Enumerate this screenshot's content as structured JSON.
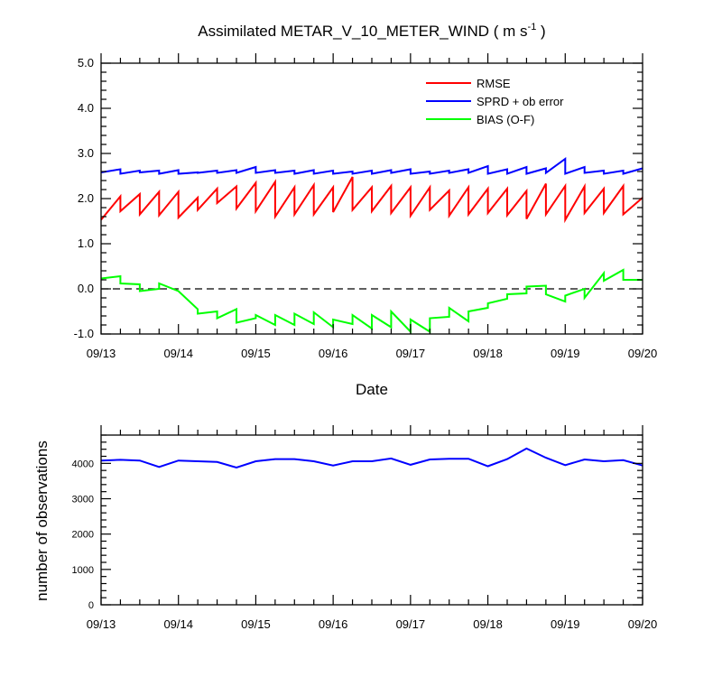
{
  "figure": {
    "title_main": "Assimilated METAR_V_10_METER_WIND ( m s",
    "title_sup": "-1",
    "title_end": " )"
  },
  "colors": {
    "rmse": "#ff0000",
    "sprd": "#0000ff",
    "bias": "#00ff00",
    "zero_line": "#000000"
  },
  "chart_data": [
    {
      "type": "line",
      "xlabel": "Date",
      "ylabel": "",
      "ylim": [
        -1.0,
        5.0
      ],
      "yticks": [
        "-1.0",
        "0.0",
        "1.0",
        "2.0",
        "3.0",
        "4.0",
        "5.0"
      ],
      "xlim": [
        "09/13",
        "09/20"
      ],
      "xticks": [
        "09/13",
        "09/14",
        "09/15",
        "09/16",
        "09/17",
        "09/18",
        "09/19",
        "09/20"
      ],
      "legend_position": "top-right",
      "reference_line": 0.0,
      "x": [
        "09/13 00",
        "09/13 06",
        "09/13 06",
        "09/13 12",
        "09/13 12",
        "09/13 18",
        "09/13 18",
        "09/14 00",
        "09/14 00",
        "09/14 06",
        "09/14 06",
        "09/14 12",
        "09/14 12",
        "09/14 18",
        "09/14 18",
        "09/15 00",
        "09/15 00",
        "09/15 06",
        "09/15 06",
        "09/15 12",
        "09/15 12",
        "09/15 18",
        "09/15 18",
        "09/16 00",
        "09/16 00",
        "09/16 06",
        "09/16 06",
        "09/16 12",
        "09/16 12",
        "09/16 18",
        "09/16 18",
        "09/17 00",
        "09/17 00",
        "09/17 06",
        "09/17 06",
        "09/17 12",
        "09/17 12",
        "09/17 18",
        "09/17 18",
        "09/18 00",
        "09/18 00",
        "09/18 06",
        "09/18 06",
        "09/18 12",
        "09/18 12",
        "09/18 18",
        "09/18 18",
        "09/19 00",
        "09/19 00",
        "09/19 06",
        "09/19 06",
        "09/19 12",
        "09/19 12",
        "09/19 18",
        "09/19 18",
        "09/20 00"
      ],
      "series": [
        {
          "name": "RMSE",
          "color": "#ff0000",
          "values": [
            1.53,
            2.05,
            1.72,
            2.1,
            1.65,
            2.15,
            1.63,
            2.15,
            1.58,
            2.02,
            1.75,
            2.22,
            1.9,
            2.27,
            1.78,
            2.35,
            1.72,
            2.37,
            1.6,
            2.25,
            1.65,
            2.3,
            1.65,
            2.25,
            1.7,
            2.48,
            1.75,
            2.25,
            1.72,
            2.28,
            1.68,
            2.25,
            1.62,
            2.25,
            1.75,
            2.18,
            1.62,
            2.25,
            1.65,
            2.22,
            1.68,
            2.22,
            1.63,
            2.17,
            1.55,
            2.33,
            1.65,
            2.28,
            1.53,
            2.27,
            1.68,
            2.22,
            1.68,
            2.28,
            1.65,
            2.02
          ]
        },
        {
          "name": "SPRD + ob error",
          "color": "#0000ff",
          "values": [
            2.58,
            2.65,
            2.55,
            2.62,
            2.58,
            2.62,
            2.55,
            2.63,
            2.55,
            2.58,
            2.57,
            2.62,
            2.57,
            2.63,
            2.57,
            2.7,
            2.57,
            2.63,
            2.57,
            2.62,
            2.55,
            2.63,
            2.55,
            2.62,
            2.55,
            2.6,
            2.55,
            2.62,
            2.55,
            2.63,
            2.57,
            2.65,
            2.55,
            2.6,
            2.55,
            2.62,
            2.57,
            2.65,
            2.57,
            2.72,
            2.55,
            2.65,
            2.55,
            2.7,
            2.55,
            2.67,
            2.57,
            2.88,
            2.55,
            2.7,
            2.57,
            2.62,
            2.55,
            2.62,
            2.55,
            2.67
          ]
        },
        {
          "name": "BIAS (O-F)",
          "color": "#00ff00",
          "values": [
            0.23,
            0.28,
            0.12,
            0.1,
            -0.05,
            0.0,
            0.12,
            -0.05,
            -0.05,
            -0.45,
            -0.55,
            -0.5,
            -0.65,
            -0.45,
            -0.75,
            -0.65,
            -0.58,
            -0.8,
            -0.58,
            -0.8,
            -0.55,
            -0.78,
            -0.52,
            -0.85,
            -0.68,
            -0.78,
            -0.58,
            -0.88,
            -0.58,
            -0.85,
            -0.5,
            -0.95,
            -0.68,
            -0.95,
            -0.65,
            -0.62,
            -0.42,
            -0.72,
            -0.5,
            -0.42,
            -0.32,
            -0.22,
            -0.12,
            -0.1,
            0.05,
            0.07,
            -0.12,
            -0.28,
            -0.15,
            0.0,
            -0.2,
            0.35,
            0.18,
            0.42,
            0.2,
            0.2
          ]
        }
      ]
    },
    {
      "type": "line",
      "xlabel": "",
      "ylabel": "number of observations",
      "ylim": [
        0,
        4800
      ],
      "yticks": [
        "0",
        "1000",
        "2000",
        "3000",
        "4000"
      ],
      "xlim": [
        "09/13",
        "09/20"
      ],
      "xticks": [
        "09/13",
        "09/14",
        "09/15",
        "09/16",
        "09/17",
        "09/18",
        "09/19",
        "09/20"
      ],
      "x": [
        "09/13 00",
        "09/13 06",
        "09/13 12",
        "09/13 18",
        "09/14 00",
        "09/14 06",
        "09/14 12",
        "09/14 18",
        "09/15 00",
        "09/15 06",
        "09/15 12",
        "09/15 18",
        "09/16 00",
        "09/16 06",
        "09/16 12",
        "09/16 18",
        "09/17 00",
        "09/17 06",
        "09/17 12",
        "09/17 18",
        "09/18 00",
        "09/18 06",
        "09/18 12",
        "09/18 18",
        "09/19 00",
        "09/19 06",
        "09/19 12",
        "09/19 18",
        "09/20 00"
      ],
      "series": [
        {
          "color": "#0000ff",
          "values": [
            4080,
            4100,
            4080,
            3900,
            4080,
            4060,
            4040,
            3880,
            4060,
            4120,
            4120,
            4060,
            3940,
            4060,
            4060,
            4140,
            3960,
            4110,
            4130,
            4130,
            3920,
            4120,
            4420,
            4160,
            3950,
            4110,
            4060,
            4090,
            3940
          ]
        }
      ]
    }
  ]
}
